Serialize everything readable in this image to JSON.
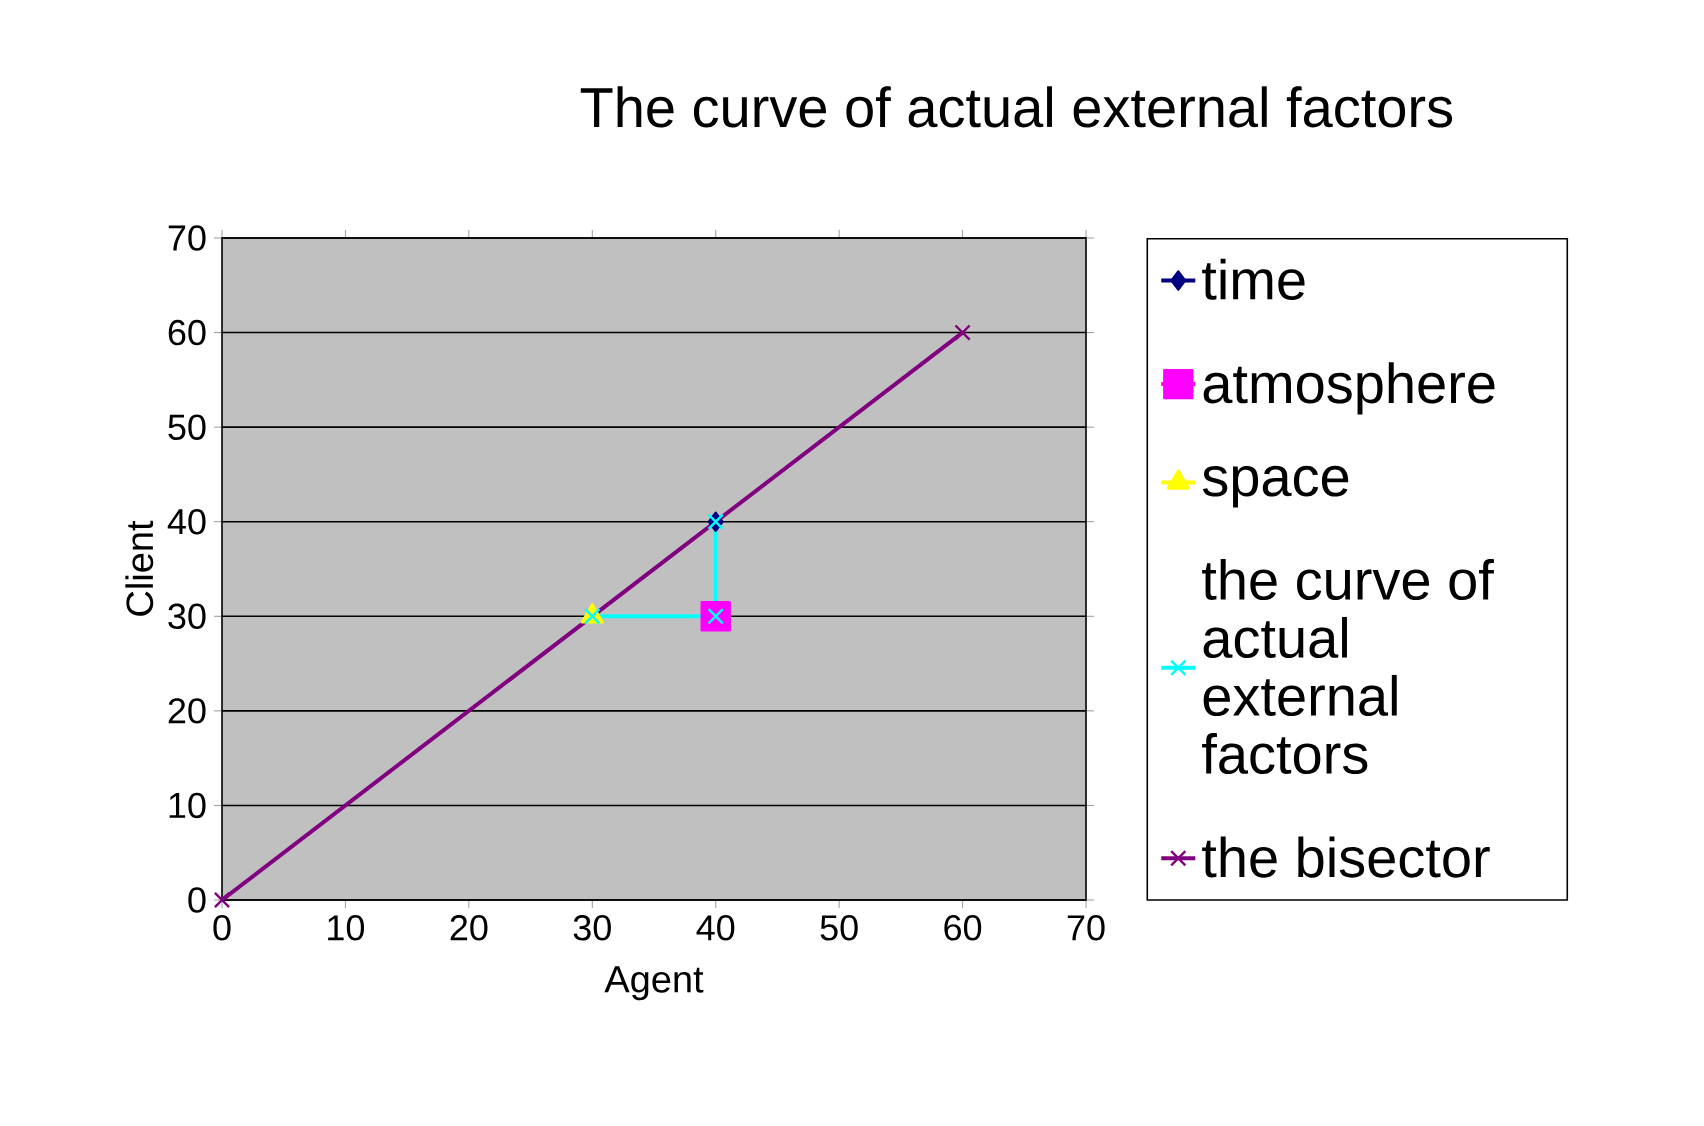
{
  "chart_data": {
    "type": "line",
    "title": "The curve of actual external factors",
    "xlabel": "Agent",
    "ylabel": "Client",
    "xlim": [
      0,
      70
    ],
    "ylim": [
      0,
      70
    ],
    "xticks": [
      0,
      10,
      20,
      30,
      40,
      50,
      60,
      70
    ],
    "yticks": [
      0,
      10,
      20,
      30,
      40,
      50,
      60,
      70
    ],
    "grid": "y",
    "legend": "right",
    "series": [
      {
        "name": "time",
        "color": "#000080",
        "marker": "diamond",
        "x": [
          40
        ],
        "values": [
          40
        ]
      },
      {
        "name": "atmosphere",
        "color": "#ff00ff",
        "marker": "square",
        "x": [
          40
        ],
        "values": [
          30
        ]
      },
      {
        "name": "space",
        "color": "#ffff00",
        "marker": "triangle",
        "x": [
          30
        ],
        "values": [
          30
        ]
      },
      {
        "name": "the curve of actual external factors",
        "color": "#00ffff",
        "marker": "cross",
        "x": [
          40,
          40,
          30
        ],
        "values": [
          40,
          30,
          30
        ]
      },
      {
        "name": "the bisector",
        "color": "#800080",
        "marker": "cross",
        "x": [
          0,
          60
        ],
        "values": [
          0,
          60
        ]
      }
    ]
  }
}
